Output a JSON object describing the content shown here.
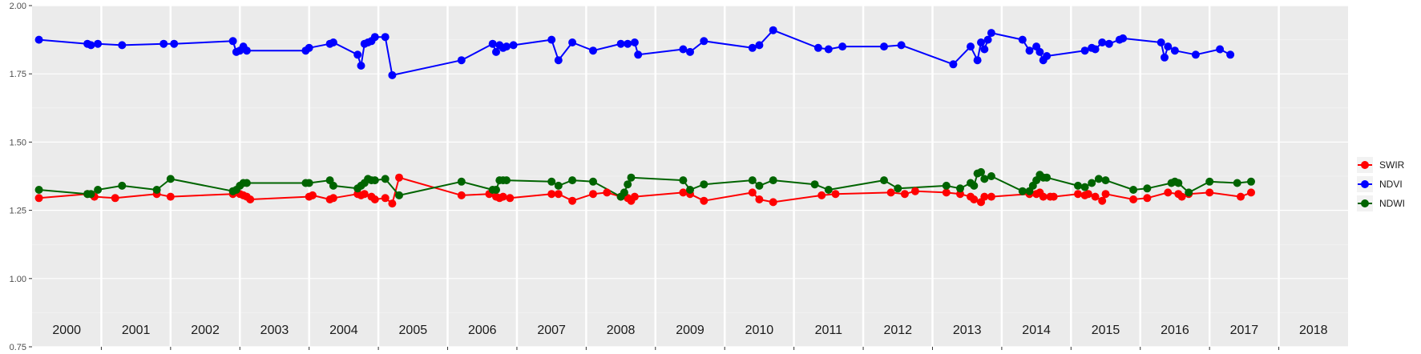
{
  "chart_data": {
    "type": "line",
    "title": "",
    "xlabel": "",
    "ylabel": "",
    "ylim": [
      0.75,
      2.0
    ],
    "y_ticks": [
      "0.75",
      "1.00",
      "1.25",
      "1.50",
      "1.75",
      "2.00"
    ],
    "y_tick_values": [
      0.75,
      1.0,
      1.25,
      1.5,
      1.75,
      2.0
    ],
    "xlim": [
      2000.0,
      2019.0
    ],
    "year_labels": [
      "2000",
      "2001",
      "2002",
      "2003",
      "2004",
      "2005",
      "2006",
      "2007",
      "2008",
      "2009",
      "2010",
      "2011",
      "2012",
      "2013",
      "2014",
      "2015",
      "2016",
      "2017",
      "2018"
    ],
    "grid": true,
    "legend_position": "right",
    "series": [
      {
        "name": "SWIR",
        "color": "#ff0000",
        "x": [
          2000.1,
          2000.8,
          2000.9,
          2001.2,
          2001.8,
          2002.0,
          2002.9,
          2003.0,
          2003.05,
          2003.1,
          2003.15,
          2004.0,
          2004.05,
          2004.3,
          2004.35,
          2004.7,
          2004.75,
          2004.8,
          2004.9,
          2004.95,
          2005.1,
          2005.2,
          2005.3,
          2006.2,
          2006.6,
          2006.7,
          2006.75,
          2006.8,
          2006.9,
          2007.5,
          2007.6,
          2007.8,
          2008.1,
          2008.3,
          2008.5,
          2008.6,
          2008.65,
          2008.7,
          2009.4,
          2009.5,
          2009.7,
          2010.4,
          2010.5,
          2010.7,
          2011.4,
          2011.6,
          2012.4,
          2012.6,
          2012.75,
          2013.2,
          2013.4,
          2013.55,
          2013.6,
          2013.7,
          2013.75,
          2013.85,
          2014.4,
          2014.5,
          2014.55,
          2014.6,
          2014.7,
          2014.75,
          2015.1,
          2015.2,
          2015.25,
          2015.35,
          2015.45,
          2015.5,
          2015.9,
          2016.1,
          2016.4,
          2016.55,
          2016.6,
          2016.7,
          2017.0,
          2017.45,
          2017.6
        ],
        "values": [
          1.295,
          1.31,
          1.3,
          1.295,
          1.31,
          1.3,
          1.31,
          1.31,
          1.305,
          1.3,
          1.29,
          1.3,
          1.305,
          1.29,
          1.295,
          1.31,
          1.305,
          1.31,
          1.3,
          1.29,
          1.295,
          1.275,
          1.37,
          1.305,
          1.31,
          1.3,
          1.295,
          1.3,
          1.295,
          1.31,
          1.31,
          1.285,
          1.31,
          1.315,
          1.3,
          1.295,
          1.285,
          1.3,
          1.315,
          1.31,
          1.285,
          1.315,
          1.29,
          1.28,
          1.305,
          1.31,
          1.315,
          1.31,
          1.32,
          1.315,
          1.31,
          1.3,
          1.29,
          1.28,
          1.3,
          1.3,
          1.31,
          1.31,
          1.315,
          1.3,
          1.3,
          1.3,
          1.31,
          1.305,
          1.31,
          1.3,
          1.285,
          1.31,
          1.29,
          1.295,
          1.315,
          1.31,
          1.3,
          1.31,
          1.315,
          1.3,
          1.315
        ]
      },
      {
        "name": "NDVI",
        "color": "#0000ff",
        "x": [
          2000.1,
          2000.8,
          2000.85,
          2000.95,
          2001.3,
          2001.9,
          2002.05,
          2002.9,
          2002.95,
          2003.0,
          2003.05,
          2003.1,
          2003.95,
          2004.0,
          2004.3,
          2004.35,
          2004.7,
          2004.75,
          2004.8,
          2004.85,
          2004.9,
          2004.95,
          2005.1,
          2005.2,
          2006.2,
          2006.65,
          2006.7,
          2006.75,
          2006.8,
          2006.85,
          2006.95,
          2007.5,
          2007.6,
          2007.8,
          2008.1,
          2008.5,
          2008.6,
          2008.7,
          2008.75,
          2009.4,
          2009.5,
          2009.7,
          2010.4,
          2010.5,
          2010.7,
          2011.35,
          2011.5,
          2011.7,
          2012.3,
          2012.55,
          2013.3,
          2013.55,
          2013.65,
          2013.7,
          2013.75,
          2013.8,
          2013.85,
          2014.3,
          2014.4,
          2014.5,
          2014.55,
          2014.6,
          2014.65,
          2015.2,
          2015.3,
          2015.35,
          2015.45,
          2015.55,
          2015.7,
          2015.75,
          2016.3,
          2016.35,
          2016.4,
          2016.5,
          2016.8,
          2017.15,
          2017.3
        ],
        "values": [
          1.875,
          1.86,
          1.855,
          1.86,
          1.855,
          1.86,
          1.86,
          1.87,
          1.83,
          1.835,
          1.85,
          1.835,
          1.835,
          1.845,
          1.86,
          1.865,
          1.82,
          1.78,
          1.86,
          1.865,
          1.87,
          1.885,
          1.885,
          1.745,
          1.8,
          1.86,
          1.83,
          1.855,
          1.845,
          1.85,
          1.855,
          1.875,
          1.8,
          1.865,
          1.835,
          1.86,
          1.86,
          1.865,
          1.82,
          1.84,
          1.83,
          1.87,
          1.845,
          1.855,
          1.91,
          1.845,
          1.84,
          1.85,
          1.85,
          1.855,
          1.785,
          1.85,
          1.8,
          1.865,
          1.84,
          1.875,
          1.9,
          1.875,
          1.835,
          1.85,
          1.83,
          1.8,
          1.815,
          1.835,
          1.845,
          1.84,
          1.865,
          1.86,
          1.875,
          1.88,
          1.865,
          1.81,
          1.85,
          1.835,
          1.82,
          1.84,
          1.82
        ]
      },
      {
        "name": "NDWI",
        "color": "#006400",
        "x": [
          2000.1,
          2000.8,
          2000.85,
          2000.95,
          2001.3,
          2001.8,
          2002.0,
          2002.9,
          2002.95,
          2003.0,
          2003.05,
          2003.1,
          2003.95,
          2004.0,
          2004.3,
          2004.35,
          2004.7,
          2004.75,
          2004.8,
          2004.85,
          2004.9,
          2004.95,
          2005.1,
          2005.3,
          2006.2,
          2006.65,
          2006.7,
          2006.75,
          2006.8,
          2006.85,
          2007.5,
          2007.6,
          2007.8,
          2008.1,
          2008.5,
          2008.55,
          2008.6,
          2008.65,
          2009.4,
          2009.5,
          2009.7,
          2010.4,
          2010.5,
          2010.7,
          2011.3,
          2011.5,
          2012.3,
          2012.5,
          2013.2,
          2013.4,
          2013.55,
          2013.6,
          2013.65,
          2013.7,
          2013.75,
          2013.85,
          2014.3,
          2014.4,
          2014.45,
          2014.5,
          2014.55,
          2014.6,
          2014.65,
          2015.1,
          2015.2,
          2015.3,
          2015.4,
          2015.5,
          2015.9,
          2016.1,
          2016.45,
          2016.5,
          2016.55,
          2016.7,
          2017.0,
          2017.4,
          2017.6
        ],
        "values": [
          1.325,
          1.31,
          1.31,
          1.325,
          1.34,
          1.325,
          1.365,
          1.32,
          1.325,
          1.34,
          1.35,
          1.35,
          1.35,
          1.35,
          1.36,
          1.34,
          1.33,
          1.34,
          1.35,
          1.365,
          1.36,
          1.36,
          1.365,
          1.305,
          1.355,
          1.325,
          1.325,
          1.36,
          1.36,
          1.36,
          1.355,
          1.34,
          1.36,
          1.355,
          1.3,
          1.315,
          1.345,
          1.37,
          1.36,
          1.325,
          1.345,
          1.36,
          1.34,
          1.36,
          1.345,
          1.325,
          1.36,
          1.33,
          1.34,
          1.33,
          1.35,
          1.34,
          1.385,
          1.39,
          1.365,
          1.375,
          1.32,
          1.32,
          1.34,
          1.36,
          1.38,
          1.37,
          1.37,
          1.34,
          1.335,
          1.35,
          1.365,
          1.36,
          1.325,
          1.33,
          1.35,
          1.355,
          1.35,
          1.315,
          1.355,
          1.35,
          1.355
        ]
      }
    ]
  }
}
